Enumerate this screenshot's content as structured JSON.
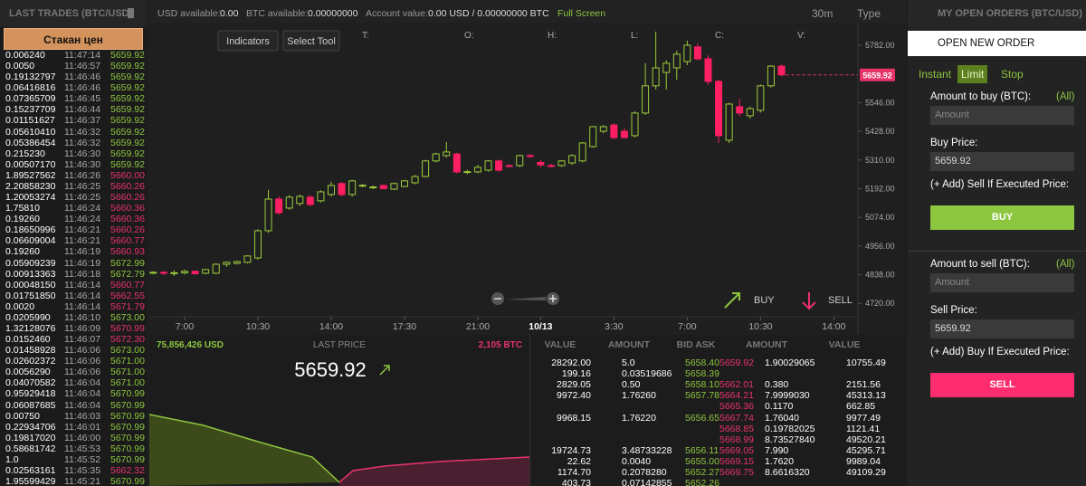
{
  "trades_panel": {
    "title": "LAST TRADES (BTC/USD)",
    "button": "Стакан цен",
    "rows": [
      {
        "amount": "0.006240",
        "time": "11:47:14",
        "price": "5659.92",
        "color": "#8dc63f"
      },
      {
        "amount": "0.0050",
        "time": "11:46:57",
        "price": "5659.92",
        "color": "#8dc63f"
      },
      {
        "amount": "0.19132797",
        "time": "11:46:46",
        "price": "5659.92",
        "color": "#8dc63f"
      },
      {
        "amount": "0.06416816",
        "time": "11:46:46",
        "price": "5659.92",
        "color": "#8dc63f"
      },
      {
        "amount": "0.07365709",
        "time": "11:46:45",
        "price": "5659.92",
        "color": "#8dc63f"
      },
      {
        "amount": "0.15237709",
        "time": "11:46:44",
        "price": "5659.92",
        "color": "#8dc63f"
      },
      {
        "amount": "0.01151627",
        "time": "11:46:37",
        "price": "5659.92",
        "color": "#8dc63f"
      },
      {
        "amount": "0.05610410",
        "time": "11:46:32",
        "price": "5659.92",
        "color": "#8dc63f"
      },
      {
        "amount": "0.05386454",
        "time": "11:46:32",
        "price": "5659.92",
        "color": "#8dc63f"
      },
      {
        "amount": "0.215230",
        "time": "11:46:30",
        "price": "5659.92",
        "color": "#8dc63f"
      },
      {
        "amount": "0.00507170",
        "time": "11:46:30",
        "price": "5659.92",
        "color": "#8dc63f"
      },
      {
        "amount": "1.89527562",
        "time": "11:46:26",
        "price": "5660.00",
        "color": "#e8336a"
      },
      {
        "amount": "2.20858230",
        "time": "11:46:25",
        "price": "5660.26",
        "color": "#e8336a"
      },
      {
        "amount": "1.20053274",
        "time": "11:46:25",
        "price": "5660.26",
        "color": "#e8336a"
      },
      {
        "amount": "1.75810",
        "time": "11:46:24",
        "price": "5660.36",
        "color": "#e8336a"
      },
      {
        "amount": "0.19260",
        "time": "11:46:24",
        "price": "5660.36",
        "color": "#e8336a"
      },
      {
        "amount": "0.18650996",
        "time": "11:46:21",
        "price": "5660.26",
        "color": "#e8336a"
      },
      {
        "amount": "0.06609004",
        "time": "11:46:21",
        "price": "5660.77",
        "color": "#e8336a"
      },
      {
        "amount": "0.19260",
        "time": "11:46:19",
        "price": "5660.93",
        "color": "#e8336a"
      },
      {
        "amount": "0.05909239",
        "time": "11:46:19",
        "price": "5672.99",
        "color": "#8dc63f"
      },
      {
        "amount": "0.00913363",
        "time": "11:46:18",
        "price": "5672.79",
        "color": "#8dc63f"
      },
      {
        "amount": "0.00048150",
        "time": "11:46:14",
        "price": "5660.77",
        "color": "#e8336a"
      },
      {
        "amount": "0.01751850",
        "time": "11:46:14",
        "price": "5662.55",
        "color": "#e8336a"
      },
      {
        "amount": "0.0020",
        "time": "11:46:14",
        "price": "5671.79",
        "color": "#e8336a"
      },
      {
        "amount": "0.0205990",
        "time": "11:46:10",
        "price": "5673.00",
        "color": "#8dc63f"
      },
      {
        "amount": "1.32128076",
        "time": "11:46:09",
        "price": "5670.99",
        "color": "#e8336a"
      },
      {
        "amount": "0.0152460",
        "time": "11:46:07",
        "price": "5672.30",
        "color": "#e8336a"
      },
      {
        "amount": "0.01458928",
        "time": "11:46:06",
        "price": "5673.00",
        "color": "#8dc63f"
      },
      {
        "amount": "0.02602372",
        "time": "11:46:06",
        "price": "5671.00",
        "color": "#8dc63f"
      },
      {
        "amount": "0.0056290",
        "time": "11:46:06",
        "price": "5671.00",
        "color": "#8dc63f"
      },
      {
        "amount": "0.04070582",
        "time": "11:46:04",
        "price": "5671.00",
        "color": "#8dc63f"
      },
      {
        "amount": "0.95929418",
        "time": "11:46:04",
        "price": "5670.99",
        "color": "#8dc63f"
      },
      {
        "amount": "0.06087685",
        "time": "11:46:04",
        "price": "5670.99",
        "color": "#8dc63f"
      },
      {
        "amount": "0.00750",
        "time": "11:46:03",
        "price": "5670.99",
        "color": "#8dc63f"
      },
      {
        "amount": "0.22934706",
        "time": "11:46:01",
        "price": "5670.99",
        "color": "#8dc63f"
      },
      {
        "amount": "0.19817020",
        "time": "11:46:00",
        "price": "5670.99",
        "color": "#8dc63f"
      },
      {
        "amount": "0.58681742",
        "time": "11:45:53",
        "price": "5670.99",
        "color": "#8dc63f"
      },
      {
        "amount": "1.0",
        "time": "11:45:52",
        "price": "5670.99",
        "color": "#8dc63f"
      },
      {
        "amount": "0.02563161",
        "time": "11:45:35",
        "price": "5662.32",
        "color": "#e8336a"
      },
      {
        "amount": "1.95599429",
        "time": "11:45:21",
        "price": "5670.99",
        "color": "#8dc63f"
      }
    ]
  },
  "top_bar": {
    "items": [
      {
        "label": "USD available:",
        "value": "0.00"
      },
      {
        "label": "BTC available:",
        "value": "0.00000000"
      },
      {
        "label": "Account value:",
        "value": "0.00 USD / 0.00000000 BTC"
      }
    ],
    "full_screen": "Full Screen",
    "interval": "30m",
    "type_menu": "Type"
  },
  "chart_data": {
    "type": "candlestick",
    "buttons": [
      "Indicators",
      "Select Tool"
    ],
    "ohlc_labels": [
      "T:",
      "O:",
      "H:",
      "L:",
      "C:",
      "V:"
    ],
    "categories": [
      null,
      null,
      null,
      "7:00",
      null,
      null,
      null,
      null,
      null,
      null,
      "10:30",
      null,
      null,
      null,
      null,
      null,
      null,
      "14:00",
      null,
      null,
      null,
      null,
      null,
      null,
      "17:30",
      null,
      null,
      null,
      null,
      null,
      null,
      "21:00",
      null,
      null,
      null,
      null,
      null,
      "10/13",
      null,
      null,
      null,
      null,
      null,
      null,
      "3:30",
      null,
      null,
      null,
      null,
      null,
      null,
      "7:00",
      null,
      null,
      null,
      null,
      null,
      null,
      "10:30",
      null,
      null,
      null,
      null,
      null,
      null,
      "14:00"
    ],
    "ohlc": [
      [
        4844,
        4852,
        4840,
        4848
      ],
      [
        4848,
        4852,
        4836,
        4844
      ],
      [
        4844,
        4856,
        4833,
        4846
      ],
      [
        4846,
        4859,
        4840,
        4852
      ],
      [
        4852,
        4855,
        4838,
        4842
      ],
      [
        4844,
        4862,
        4840,
        4859
      ],
      [
        4844,
        4885,
        4840,
        4881
      ],
      [
        4881,
        4892,
        4870,
        4889
      ],
      [
        4885,
        4896,
        4880,
        4892
      ],
      [
        4889,
        4918,
        4885,
        4915
      ],
      [
        4907,
        5025,
        4900,
        5019
      ],
      [
        5019,
        5187,
        5010,
        5149
      ],
      [
        5149,
        5160,
        5085,
        5093
      ],
      [
        5112,
        5165,
        5105,
        5157
      ],
      [
        5131,
        5168,
        5120,
        5160
      ],
      [
        5157,
        5165,
        5120,
        5127
      ],
      [
        5142,
        5185,
        5135,
        5179
      ],
      [
        5168,
        5220,
        5160,
        5205
      ],
      [
        5213,
        5220,
        5160,
        5168
      ],
      [
        5168,
        5228,
        5160,
        5224
      ],
      [
        5205,
        5212,
        5198,
        5206
      ],
      [
        5198,
        5205,
        5190,
        5199
      ],
      [
        5205,
        5210,
        5190,
        5192
      ],
      [
        5190,
        5218,
        5186,
        5213
      ],
      [
        5201,
        5228,
        5198,
        5224
      ],
      [
        5216,
        5248,
        5210,
        5242
      ],
      [
        5242,
        5310,
        5238,
        5306
      ],
      [
        5306,
        5340,
        5300,
        5335
      ],
      [
        5328,
        5384,
        5320,
        5343
      ],
      [
        5335,
        5340,
        5255,
        5261
      ],
      [
        5261,
        5270,
        5252,
        5262
      ],
      [
        5261,
        5290,
        5255,
        5280
      ],
      [
        5268,
        5310,
        5262,
        5306
      ],
      [
        5306,
        5312,
        5262,
        5268
      ],
      [
        5287,
        5292,
        5280,
        5286
      ],
      [
        5287,
        5332,
        5280,
        5328
      ],
      [
        5328,
        5334,
        5320,
        5327
      ],
      [
        5300,
        5310,
        5280,
        5290
      ],
      [
        5287,
        5294,
        5280,
        5286
      ],
      [
        5287,
        5310,
        5282,
        5306
      ],
      [
        5298,
        5334,
        5290,
        5328
      ],
      [
        5306,
        5384,
        5300,
        5380
      ],
      [
        5365,
        5450,
        5360,
        5447
      ],
      [
        5428,
        5454,
        5420,
        5447
      ],
      [
        5454,
        5460,
        5395,
        5402
      ],
      [
        5428,
        5440,
        5398,
        5402
      ],
      [
        5410,
        5510,
        5402,
        5503
      ],
      [
        5503,
        5708,
        5495,
        5615
      ],
      [
        5615,
        5838,
        5600,
        5689
      ],
      [
        5670,
        5720,
        5600,
        5708
      ],
      [
        5689,
        5760,
        5640,
        5745
      ],
      [
        5715,
        5801,
        5700,
        5782
      ],
      [
        5775,
        5790,
        5720,
        5726
      ],
      [
        5726,
        5740,
        5620,
        5633
      ],
      [
        5633,
        5640,
        5380,
        5410
      ],
      [
        5391,
        5545,
        5380,
        5540
      ],
      [
        5529,
        5560,
        5490,
        5503
      ],
      [
        5492,
        5530,
        5480,
        5521
      ],
      [
        5514,
        5620,
        5505,
        5615
      ],
      [
        5615,
        5700,
        5608,
        5696
      ],
      [
        5696,
        5702,
        5655,
        5660
      ],
      null,
      null,
      null,
      null,
      null
    ],
    "up_color": "#9ccc3c",
    "down_color": "#ff1f63",
    "ylim": [
      4665,
      5875
    ],
    "yticks": [
      {
        "value": 5782,
        "label": "5782.00"
      },
      {
        "value": 5546,
        "label": "5546.00"
      },
      {
        "value": 5428,
        "label": "5428.00"
      },
      {
        "value": 5310,
        "label": "5310.00"
      },
      {
        "value": 5192,
        "label": "5192.00"
      },
      {
        "value": 5074,
        "label": "5074.00"
      },
      {
        "value": 4956,
        "label": "4956.00"
      },
      {
        "value": 4838,
        "label": "4838.00"
      },
      {
        "value": 4720,
        "label": "4720.00"
      }
    ],
    "last_price": {
      "value": 5659.92,
      "label": "5659.92"
    },
    "buy_label": "BUY",
    "sell_label": "SELL"
  },
  "depth": {
    "left_total": "75,856,426 USD",
    "title": "LAST PRICE",
    "right_total": "2,105 BTC",
    "price": "5659.92"
  },
  "order_book": {
    "headers": [
      "VALUE",
      "AMOUNT",
      "BID ASK",
      "AMOUNT",
      "VALUE"
    ],
    "rows": [
      [
        "28292.00",
        "5.0",
        "5658.40",
        "5659.92",
        "1.90029065",
        "10755.49"
      ],
      [
        "199.16",
        "0.03519686",
        "5658.39",
        null,
        null,
        null
      ],
      [
        "2829.05",
        "0.50",
        "5658.10",
        "5662.01",
        "0.380",
        "2151.56"
      ],
      [
        "9972.40",
        "1.76260",
        "5657.78",
        "5664.21",
        "7.9999030",
        "45313.13"
      ],
      [
        null,
        null,
        null,
        "5665.36",
        "0.1170",
        "662.85"
      ],
      [
        "9968.15",
        "1.76220",
        "5656.65",
        "5667.74",
        "1.76040",
        "9977.49"
      ],
      [
        null,
        null,
        null,
        "5668.85",
        "0.19782025",
        "1121.41"
      ],
      [
        null,
        null,
        null,
        "5668.99",
        "8.73527840",
        "49520.21"
      ],
      [
        "19724.73",
        "3.48733228",
        "5656.11",
        "5669.05",
        "7.990",
        "45295.71"
      ],
      [
        "22.62",
        "0.0040",
        "5655.00",
        "5669.15",
        "1.7620",
        "9989.04"
      ],
      [
        "1174.70",
        "0.2078280",
        "5652.27",
        "5669.75",
        "8.6616320",
        "49109.29"
      ],
      [
        "403.73",
        "0.07142855",
        "5652.26",
        null,
        null,
        null
      ]
    ]
  },
  "order_panel": {
    "title": "MY OPEN ORDERS (BTC/USD)",
    "open_new": "OPEN NEW ORDER",
    "tabs": [
      "Instant",
      "Limit",
      "Stop"
    ],
    "buy": {
      "amount_label": "Amount to buy (BTC):",
      "all": "(All)",
      "amount_placeholder": "Amount",
      "price_label": "Buy Price:",
      "price": "5659.92",
      "add": "(+ Add) Sell If Executed Price:",
      "button": "BUY"
    },
    "sell": {
      "amount_label": "Amount to sell (BTC):",
      "all": "(All)",
      "amount_placeholder": "Amount",
      "price_label": "Sell Price:",
      "price": "5659.92",
      "add": "(+ Add) Buy If Executed Price:",
      "button": "SELL"
    }
  }
}
